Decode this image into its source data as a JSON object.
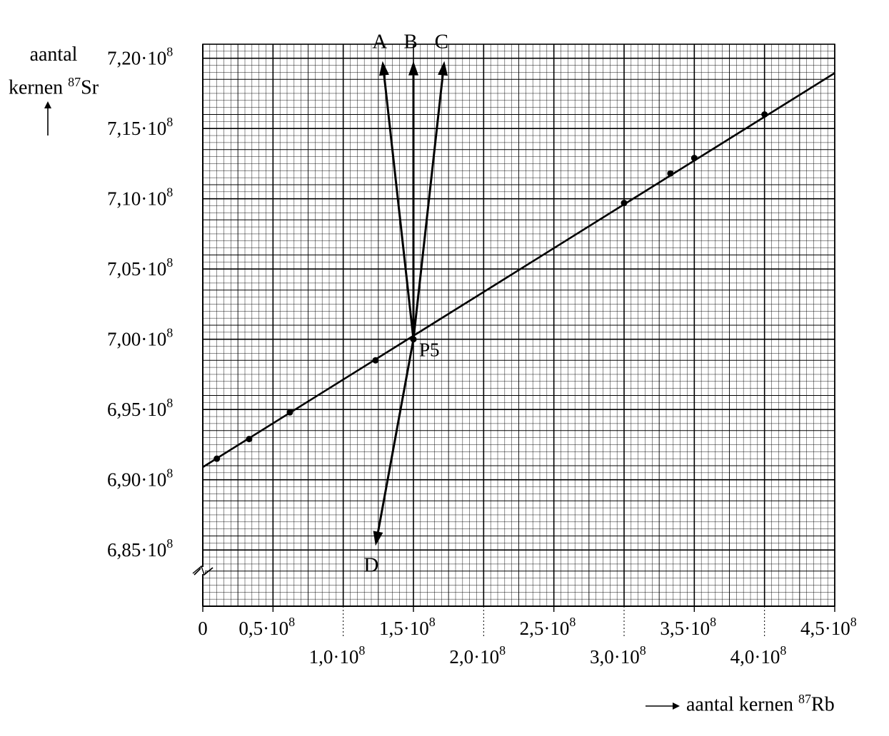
{
  "chart_data": {
    "type": "scatter",
    "ylabel": {
      "line1": "aantal",
      "line2_pre": "kernen ",
      "sup": "87",
      "line2_post": "Sr"
    },
    "xlabel": {
      "pre": "aantal kernen ",
      "sup": "87",
      "post": "Rb"
    },
    "xlim": [
      0,
      4.5
    ],
    "ylim": [
      6.81,
      7.21
    ],
    "x_tick_values": [
      0,
      0.5,
      1.0,
      1.5,
      2.0,
      2.5,
      3.0,
      3.5,
      4.0,
      4.5
    ],
    "x_ticks": [
      {
        "v": 0,
        "mantissa": "0",
        "exp": "",
        "row": "top"
      },
      {
        "v": 0.5,
        "mantissa": "0,5·10",
        "exp": "8",
        "row": "top"
      },
      {
        "v": 1.0,
        "mantissa": "1,0·10",
        "exp": "8",
        "row": "bottom"
      },
      {
        "v": 1.5,
        "mantissa": "1,5·10",
        "exp": "8",
        "row": "top"
      },
      {
        "v": 2.0,
        "mantissa": "2,0·10",
        "exp": "8",
        "row": "bottom"
      },
      {
        "v": 2.5,
        "mantissa": "2,5·10",
        "exp": "8",
        "row": "top"
      },
      {
        "v": 3.0,
        "mantissa": "3,0·10",
        "exp": "8",
        "row": "bottom"
      },
      {
        "v": 3.5,
        "mantissa": "3,5·10",
        "exp": "8",
        "row": "top"
      },
      {
        "v": 4.0,
        "mantissa": "4,0·10",
        "exp": "8",
        "row": "bottom"
      },
      {
        "v": 4.5,
        "mantissa": "4,5·10",
        "exp": "8",
        "row": "top"
      }
    ],
    "y_ticks": [
      {
        "v": 7.2,
        "mantissa": "7,20·10",
        "exp": "8"
      },
      {
        "v": 7.15,
        "mantissa": "7,15·10",
        "exp": "8"
      },
      {
        "v": 7.1,
        "mantissa": "7,10·10",
        "exp": "8"
      },
      {
        "v": 7.05,
        "mantissa": "7,05·10",
        "exp": "8"
      },
      {
        "v": 7.0,
        "mantissa": "7,00·10",
        "exp": "8"
      },
      {
        "v": 6.95,
        "mantissa": "6,95·10",
        "exp": "8"
      },
      {
        "v": 6.9,
        "mantissa": "6,90·10",
        "exp": "8"
      },
      {
        "v": 6.85,
        "mantissa": "6,85·10",
        "exp": "8"
      }
    ],
    "points": [
      {
        "x": 0.1,
        "y": 6.915
      },
      {
        "x": 0.33,
        "y": 6.929
      },
      {
        "x": 0.62,
        "y": 6.948
      },
      {
        "x": 1.23,
        "y": 6.985
      },
      {
        "x": 1.5,
        "y": 7.0,
        "label": "P5"
      },
      {
        "x": 3.0,
        "y": 7.097
      },
      {
        "x": 3.33,
        "y": 7.118
      },
      {
        "x": 3.5,
        "y": 7.129
      },
      {
        "x": 4.0,
        "y": 7.16
      }
    ],
    "fit_line": {
      "x": [
        0,
        4.5
      ],
      "y": [
        6.909,
        7.1895
      ]
    },
    "arrows": [
      {
        "label": "A",
        "from": [
          1.5,
          7.0
        ],
        "to": [
          1.28,
          7.198
        ]
      },
      {
        "label": "B",
        "from": [
          1.5,
          7.0
        ],
        "to": [
          1.5,
          7.198
        ]
      },
      {
        "label": "C",
        "from": [
          1.5,
          7.0
        ],
        "to": [
          1.72,
          7.198
        ]
      },
      {
        "label": "D",
        "from": [
          1.5,
          7.0
        ],
        "to": [
          1.23,
          6.853
        ]
      }
    ],
    "grid": true,
    "axis_break": true,
    "colors": {
      "ink": "#000000",
      "grid_minor": "#000000",
      "background": "#ffffff"
    }
  }
}
